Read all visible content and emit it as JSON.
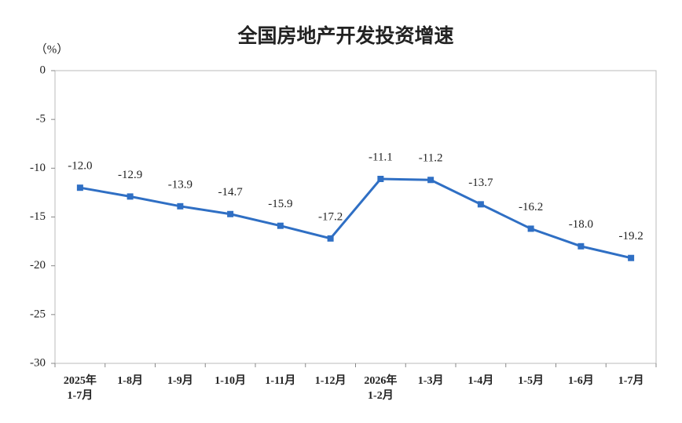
{
  "chart_data": {
    "type": "line",
    "title": "全国房地产开发投资增速",
    "y_unit": "（%）",
    "categories": [
      [
        "2025年",
        "1-7月"
      ],
      [
        "1-8月"
      ],
      [
        "1-9月"
      ],
      [
        "1-10月"
      ],
      [
        "1-11月"
      ],
      [
        "1-12月"
      ],
      [
        "2026年",
        "1-2月"
      ],
      [
        "1-3月"
      ],
      [
        "1-4月"
      ],
      [
        "1-5月"
      ],
      [
        "1-6月"
      ],
      [
        "1-7月"
      ]
    ],
    "values": [
      -12.0,
      -12.9,
      -13.9,
      -14.7,
      -15.9,
      -17.2,
      -11.1,
      -11.2,
      -13.7,
      -16.2,
      -18.0,
      -19.2
    ],
    "value_labels": [
      "-12.0",
      "-12.9",
      "-13.9",
      "-14.7",
      "-15.9",
      "-17.2",
      "-11.1",
      "-11.2",
      "-13.7",
      "-16.2",
      "-18.0",
      "-19.2"
    ],
    "color": "#2f6fc4",
    "ylim": [
      -30,
      0
    ],
    "yticks": [
      0,
      -5,
      -10,
      -15,
      -20,
      -25,
      -30
    ]
  }
}
